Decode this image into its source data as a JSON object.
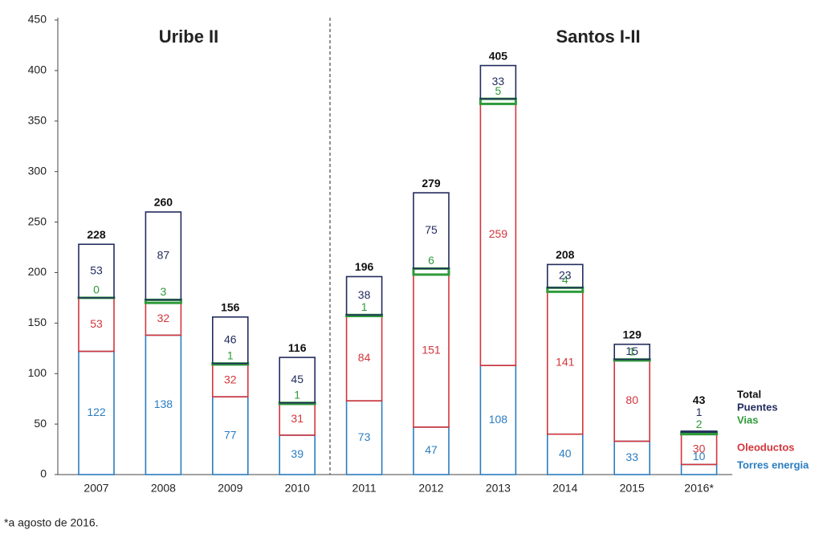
{
  "chart_data": {
    "type": "stacked_bar",
    "group_labels": [
      "Uribe II",
      "Santos I-II"
    ],
    "categories": [
      "2007",
      "2008",
      "2009",
      "2010",
      "2011",
      "2012",
      "2013",
      "2014",
      "2015",
      "2016*"
    ],
    "series": [
      {
        "name": "Torres energia",
        "color": "#2b7cc0",
        "values": [
          122,
          138,
          77,
          39,
          73,
          47,
          108,
          40,
          33,
          10
        ]
      },
      {
        "name": "Oleoductos",
        "color": "#d3353b",
        "values": [
          53,
          32,
          32,
          31,
          84,
          151,
          259,
          141,
          80,
          30
        ]
      },
      {
        "name": "Vias",
        "color": "#2e9a3a",
        "values": [
          0,
          3,
          1,
          1,
          1,
          6,
          5,
          4,
          1,
          2
        ]
      },
      {
        "name": "Puentes",
        "color": "#232c5e",
        "values": [
          53,
          87,
          46,
          45,
          38,
          75,
          33,
          23,
          15,
          1
        ]
      }
    ],
    "totals": {
      "name": "Total",
      "color": "#111111",
      "values": [
        228,
        260,
        156,
        116,
        196,
        279,
        405,
        208,
        129,
        43
      ]
    },
    "ylim": [
      0,
      450
    ],
    "yticks": [
      0,
      50,
      100,
      150,
      200,
      250,
      300,
      350,
      400,
      450
    ],
    "footnote": "*a agosto de 2016."
  }
}
